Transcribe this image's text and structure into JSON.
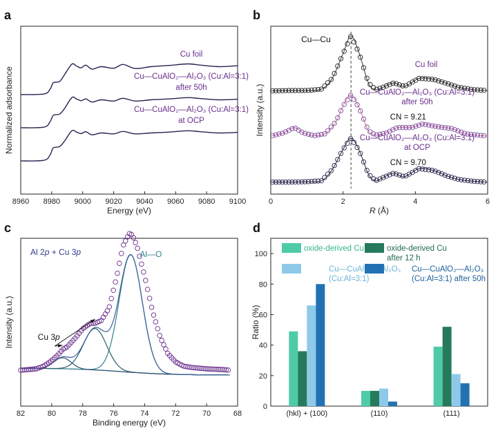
{
  "chart_data": [
    {
      "panel": "a",
      "type": "line",
      "xlabel": "Energy (eV)",
      "ylabel": "Normalized adsorbance",
      "xlim": [
        8960,
        9100
      ],
      "xticks": [
        "8960",
        "8980",
        "9000",
        "9020",
        "9040",
        "9060",
        "9080",
        "9100"
      ],
      "series": [
        {
          "name": "Cu foil",
          "label_lines": [
            "Cu foil"
          ],
          "color": "#2a1f4f",
          "offset": 2.0,
          "x": [
            8960,
            8975,
            8979,
            8981,
            8985,
            8988,
            8993,
            8996,
            8999,
            9002,
            9006,
            9012,
            9020,
            9026,
            9034,
            9044,
            9056,
            9068,
            9076,
            9088,
            9100
          ],
          "y": [
            0.0,
            0.02,
            0.18,
            0.38,
            0.42,
            0.62,
            0.98,
            0.92,
            0.86,
            0.95,
            0.82,
            0.9,
            0.85,
            0.97,
            0.84,
            0.9,
            0.94,
            0.99,
            0.95,
            0.9,
            0.93
          ]
        },
        {
          "name": "Cu—CuAlO₂—Al₂O₃ (Cu:Al=3:1) after 50h",
          "label_lines": [
            "Cu—CuAlO₂—Al₂O₃ (Cu:Al=3:1)",
            "after 50h"
          ],
          "color": "#2a1f4f",
          "offset": 1.0,
          "x": [
            8960,
            8975,
            8979,
            8981,
            8985,
            8988,
            8993,
            8996,
            8999,
            9002,
            9006,
            9012,
            9020,
            9026,
            9034,
            9044,
            9056,
            9068,
            9076,
            9088,
            9100
          ],
          "y": [
            0.0,
            0.02,
            0.2,
            0.4,
            0.44,
            0.6,
            0.97,
            0.93,
            0.87,
            0.93,
            0.83,
            0.9,
            0.86,
            0.95,
            0.86,
            0.9,
            0.93,
            0.97,
            0.94,
            0.9,
            0.92
          ]
        },
        {
          "name": "Cu—CuAlO₂—Al₂O₃ (Cu:Al=3:1) at OCP",
          "label_lines": [
            "Cu—CuAlO₂—Al₂O₃ (Cu:Al=3:1)",
            "at OCP"
          ],
          "color": "#2a1f4f",
          "offset": 0.0,
          "x": [
            8960,
            8975,
            8979,
            8981,
            8985,
            8988,
            8993,
            8996,
            8999,
            9002,
            9006,
            9012,
            9020,
            9026,
            9034,
            9044,
            9056,
            9068,
            9076,
            9088,
            9100
          ],
          "y": [
            0.0,
            0.02,
            0.2,
            0.42,
            0.46,
            0.62,
            0.97,
            0.93,
            0.88,
            0.94,
            0.84,
            0.9,
            0.87,
            0.95,
            0.87,
            0.9,
            0.93,
            0.97,
            0.94,
            0.9,
            0.92
          ]
        }
      ]
    },
    {
      "panel": "b",
      "type": "line",
      "xlabel": "R (Å)",
      "xlabel_prefix": "R",
      "xlabel_suffix": " (Å)",
      "ylabel": "Intensity (a.u.)",
      "xlim": [
        0,
        6
      ],
      "xticks": [
        "0",
        "2",
        "4",
        "6"
      ],
      "reference_line_x": 2.22,
      "annotation": "Cu—Cu",
      "series": [
        {
          "name": "Cu foil",
          "label_lines": [
            "Cu foil"
          ],
          "cn": "",
          "color": "#222222",
          "fit_color": "#555555",
          "offset": 2.0,
          "x": [
            0,
            0.5,
            1.0,
            1.4,
            1.7,
            2.0,
            2.22,
            2.45,
            2.7,
            2.9,
            3.1,
            3.4,
            3.7,
            4.1,
            4.5,
            4.9,
            5.2,
            5.6,
            6.0
          ],
          "y": [
            0.02,
            0.03,
            0.03,
            0.06,
            0.3,
            0.85,
            1.25,
            0.85,
            0.2,
            0.05,
            0.1,
            0.2,
            0.12,
            0.3,
            0.28,
            0.18,
            0.1,
            0.05,
            0.03
          ]
        },
        {
          "name": "Cu—CuAlO₂—Al₂O₃ (Cu:Al=3:1) after 50h",
          "label_lines": [
            "Cu—CuAlO₂—Al₂O₃ (Cu:Al=3:1)",
            "after 50h"
          ],
          "cn": "CN = 9.21",
          "color": "#7b4a9e",
          "fit_color": "#d98aa8",
          "offset": 1.0,
          "x": [
            0,
            0.35,
            0.65,
            0.9,
            1.2,
            1.5,
            1.8,
            2.0,
            2.22,
            2.45,
            2.7,
            2.9,
            3.2,
            3.5,
            3.9,
            4.2,
            4.6,
            5.0,
            5.4,
            6.0
          ],
          "y": [
            0.03,
            0.1,
            0.22,
            0.1,
            0.04,
            0.08,
            0.35,
            0.7,
            0.95,
            0.65,
            0.15,
            0.05,
            0.1,
            0.22,
            0.22,
            0.3,
            0.24,
            0.2,
            0.08,
            0.03
          ]
        },
        {
          "name": "Cu—CuAlO₂—Al₂O₃ (Cu:Al=3:1) at OCP",
          "label_lines": [
            "Cu—CuAlO₂—Al₂O₃ (Cu:Al=3:1)",
            "at OCP"
          ],
          "cn": "CN = 9.70",
          "color": "#2a1f4f",
          "fit_color": "#4a4a4a",
          "offset": 0.0,
          "x": [
            0,
            0.5,
            1.0,
            1.4,
            1.7,
            2.0,
            2.22,
            2.45,
            2.7,
            2.9,
            3.1,
            3.4,
            3.7,
            4.1,
            4.5,
            4.9,
            5.2,
            5.6,
            6.0
          ],
          "y": [
            0.02,
            0.02,
            0.03,
            0.05,
            0.3,
            0.75,
            1.0,
            0.72,
            0.2,
            0.05,
            0.12,
            0.22,
            0.14,
            0.32,
            0.28,
            0.15,
            0.08,
            0.04,
            0.02
          ]
        }
      ]
    },
    {
      "panel": "c",
      "type": "line",
      "title": "Al 2p + Cu 3p",
      "title_parts": [
        "Al 2",
        "p",
        " + Cu 3",
        "p"
      ],
      "xlabel": "Binding energy (eV)",
      "ylabel": "Intensity (a.u.)",
      "xlim": [
        82,
        68
      ],
      "xticks": [
        "82",
        "80",
        "78",
        "76",
        "74",
        "72",
        "70",
        "68"
      ],
      "annotations": [
        "Al—O",
        "Cu 3p"
      ],
      "cu3p_parts": [
        "Cu 3",
        "p"
      ],
      "cu3p_peaks": [
        79.3,
        77.2
      ],
      "measured": {
        "x": [
          82,
          81,
          80.5,
          80,
          79.6,
          79.3,
          79,
          78.5,
          78,
          77.5,
          77.2,
          76.8,
          76.3,
          75.8,
          75.4,
          75.0,
          74.8,
          74.5,
          74.0,
          73.5,
          73.0,
          72.5,
          72.0,
          71.5,
          71.0,
          70.0,
          69.0,
          68.5
        ],
        "y": [
          0.0,
          0.01,
          0.03,
          0.07,
          0.11,
          0.15,
          0.17,
          0.23,
          0.3,
          0.34,
          0.34,
          0.36,
          0.45,
          0.68,
          0.9,
          0.99,
          0.98,
          0.9,
          0.68,
          0.43,
          0.24,
          0.12,
          0.06,
          0.03,
          0.02,
          0.01,
          0.005,
          0.0
        ]
      },
      "components": [
        {
          "name": "Al—O",
          "center": 74.9,
          "height": 0.85,
          "width": 0.75,
          "color": "#2e7f8f"
        },
        {
          "name": "Cu 3p (1)",
          "center": 77.2,
          "height": 0.3,
          "width": 0.75,
          "color": "#2e5f6f"
        },
        {
          "name": "Cu 3p (2)",
          "center": 79.3,
          "height": 0.08,
          "width": 0.55,
          "color": "#2e4f6f"
        }
      ]
    },
    {
      "panel": "d",
      "type": "bar",
      "ylabel": "Ratio (%)",
      "ylim": [
        0,
        110
      ],
      "yticks": [
        "0",
        "20",
        "40",
        "60",
        "80",
        "100"
      ],
      "categories": [
        "(hkl) + (100)",
        "(110)",
        "(111)"
      ],
      "series": [
        {
          "name": "oxide-derived Cu",
          "legend_lines": [
            "oxide-derived Cu"
          ],
          "color": "#4ecba7",
          "values": [
            49,
            10,
            39
          ]
        },
        {
          "name": "oxide-derived Cu after 12 h",
          "legend_lines": [
            "oxide-derived Cu",
            "after 12 h"
          ],
          "color": "#267a5c",
          "values": [
            36,
            10,
            52
          ]
        },
        {
          "name": "Cu—CuAlO₂—Al₂O₃ (Cu:Al=3:1)",
          "legend_lines": [
            "Cu—CuAlO₂—Al₂O₃",
            "(Cu:Al=3:1)"
          ],
          "color": "#8ec9e9",
          "values": [
            66,
            11.5,
            21
          ]
        },
        {
          "name": "Cu—CuAlO₂—Al₂O₃ (Cu:Al=3:1) after 50h",
          "legend_lines": [
            "Cu—CuAlO₂—Al₂O₃",
            "(Cu:Al=3:1) after 50h"
          ],
          "color": "#2272b3",
          "values": [
            80,
            3,
            15
          ]
        }
      ]
    }
  ],
  "panel_letters": [
    "a",
    "b",
    "c",
    "d"
  ]
}
